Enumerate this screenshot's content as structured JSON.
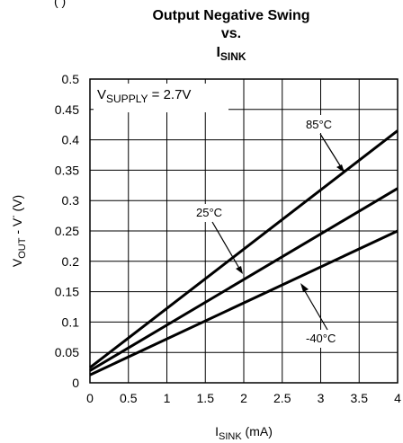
{
  "header_fragment": "(                      )",
  "chart_data": {
    "type": "line",
    "title_lines": [
      "Output Negative Swing",
      "vs."
    ],
    "title_subscript": {
      "main": "I",
      "sub": "SINK"
    },
    "xlabel": {
      "main": "I",
      "sub": "SINK",
      "rest": " (mA)"
    },
    "ylabel": {
      "p1": "V",
      "p1sub": "OUT",
      "p2": " - V",
      "p2sup": "-",
      "p3": " (V)"
    },
    "xlim": [
      0,
      4
    ],
    "ylim": [
      0,
      0.5
    ],
    "xticks": [
      "0",
      "0.5",
      "1",
      "1.5",
      "2",
      "2.5",
      "3",
      "3.5",
      "4"
    ],
    "yticks": [
      "0",
      "0.05",
      "0.1",
      "0.15",
      "0.2",
      "0.25",
      "0.3",
      "0.35",
      "0.4",
      "0.45",
      "0.5"
    ],
    "grid": true,
    "supply_label": {
      "main": "V",
      "sub": "SUPPLY",
      "rest": " = 2.7V"
    },
    "series": [
      {
        "name": "85°C",
        "x": [
          0,
          4
        ],
        "y": [
          0.025,
          0.415
        ]
      },
      {
        "name": "25°C",
        "x": [
          0,
          4
        ],
        "y": [
          0.02,
          0.32
        ]
      },
      {
        "name": "-40°C",
        "x": [
          0,
          4
        ],
        "y": [
          0.013,
          0.25
        ]
      }
    ]
  }
}
